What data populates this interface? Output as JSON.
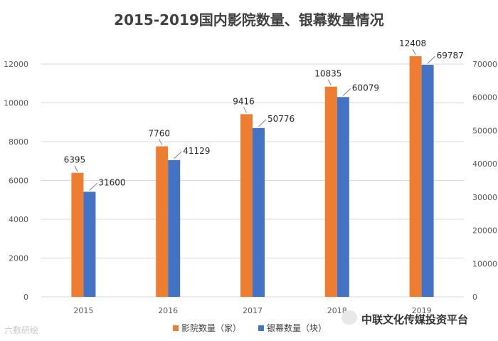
{
  "chart_data": {
    "type": "bar",
    "title": "2015-2019国内影院数量、银幕数量情况",
    "categories": [
      "2015",
      "2016",
      "2017",
      "2018",
      "2019"
    ],
    "series": [
      {
        "name": "影院数量（家）",
        "values": [
          6395,
          7760,
          9416,
          10835,
          12408
        ],
        "color": "#ED7D31",
        "axis": "left"
      },
      {
        "name": "银幕数量（块）",
        "values": [
          31600,
          41129,
          50776,
          60079,
          69787
        ],
        "color": "#4472C4",
        "axis": "right"
      }
    ],
    "y_left": {
      "min": 0,
      "max": 12000,
      "ticks": [
        "0",
        "2000",
        "4000",
        "6000",
        "8000",
        "10000",
        "12000"
      ]
    },
    "y_right": {
      "min": 0,
      "max": 70000,
      "ticks": [
        "0",
        "10000",
        "20000",
        "30000",
        "40000",
        "50000",
        "60000",
        "70000"
      ]
    },
    "grid": true,
    "legend_position": "bottom"
  },
  "watermarks": {
    "left": "六数研绘",
    "right": "中联文化传媒投资平台"
  }
}
